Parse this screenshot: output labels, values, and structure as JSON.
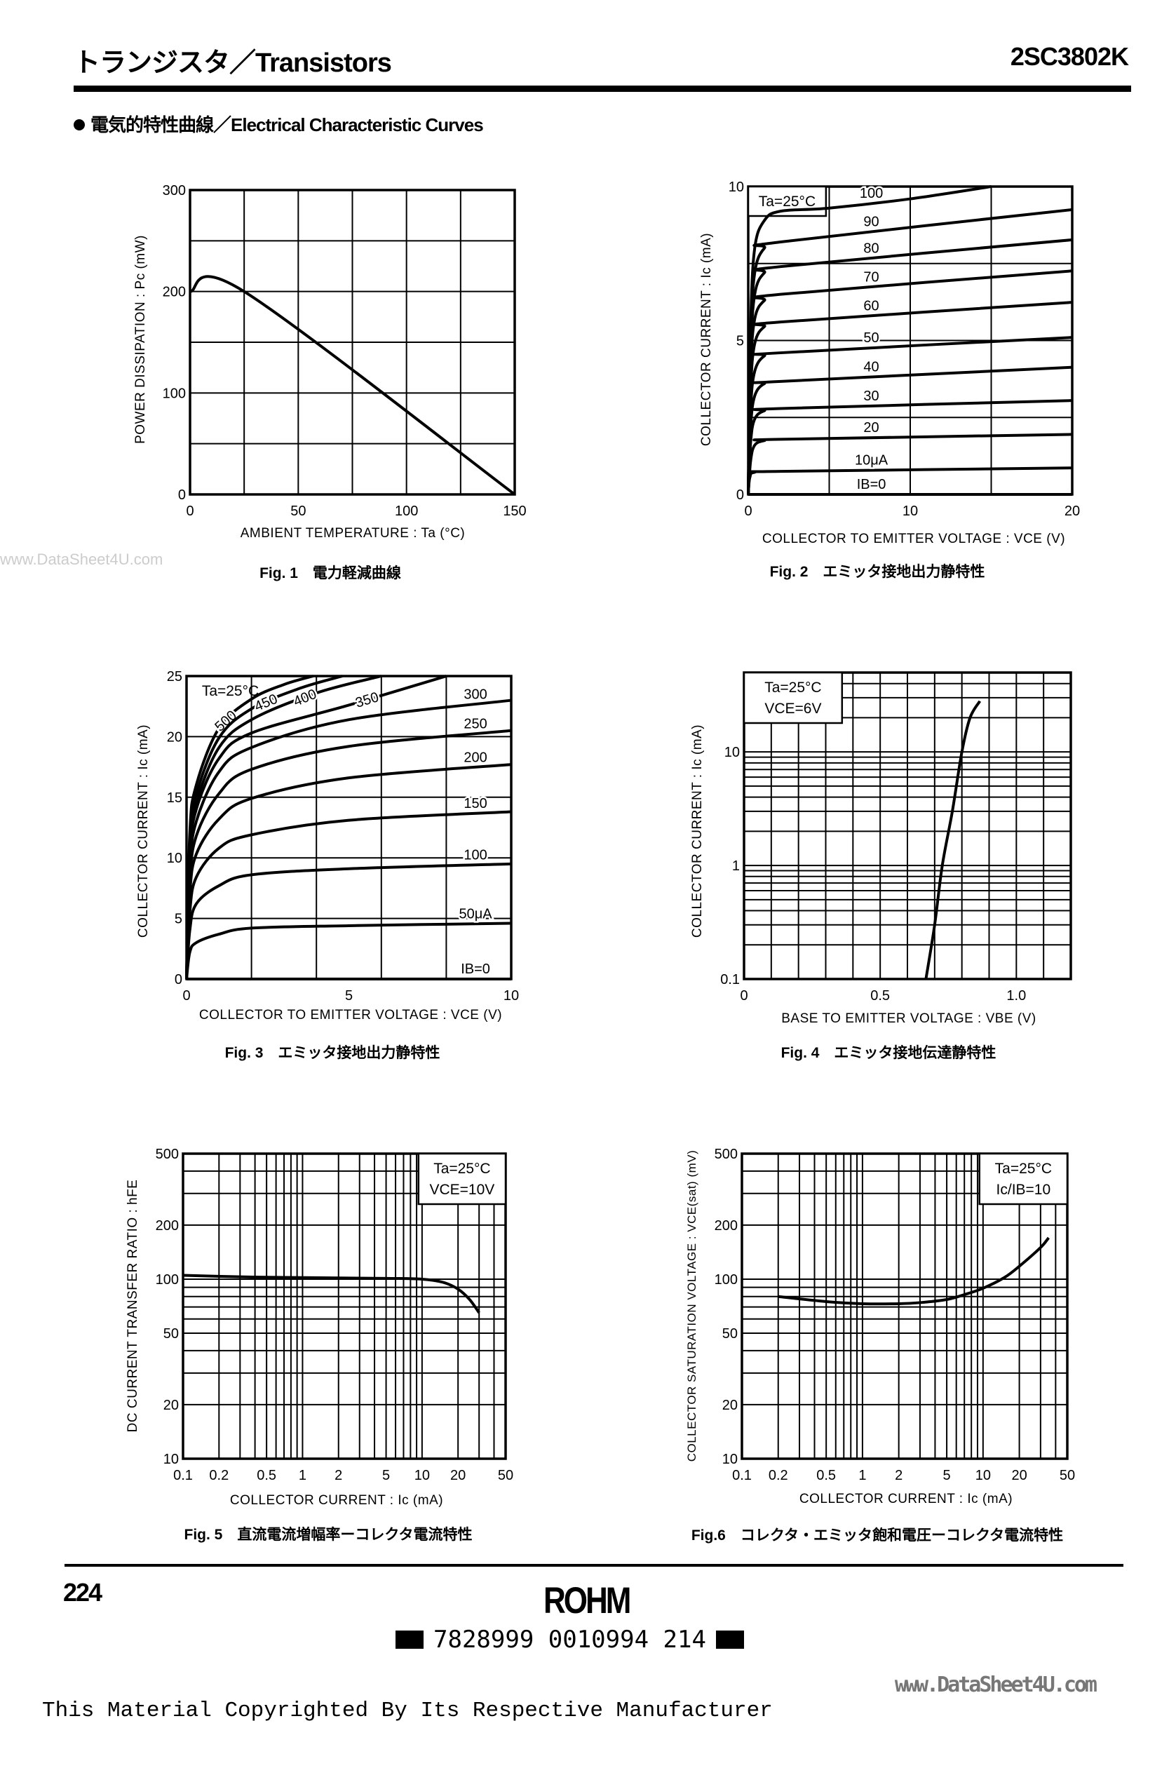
{
  "header": {
    "title": "トランジスタ／Transistors",
    "part_number": "2SC3802K"
  },
  "section": {
    "title": "電気的特性曲線／Electrical Characteristic Curves"
  },
  "watermark": {
    "left": "www.DataSheet4U.com",
    "right": "www.DataSheet4U.com"
  },
  "footer": {
    "page_number": "224",
    "logo": "ROHM",
    "barcode": "7828999 0010994 214",
    "copyright": "This Material Copyrighted By Its Respective Manufacturer"
  },
  "chart_data": [
    {
      "type": "line",
      "caption": "Fig. 1　電力軽減曲線",
      "xlabel": "AMBIENT TEMPERATURE : Ta (°C)",
      "ylabel": "POWER DISSIPATION : Pc (mW)",
      "xscale": "linear",
      "yscale": "linear",
      "xlim": [
        0,
        150
      ],
      "ylim": [
        0,
        300
      ],
      "xgrid_step": 25,
      "ygrid_step": 50,
      "xticks": [
        0,
        50,
        100,
        150
      ],
      "yticks": [
        0,
        100,
        200,
        300
      ],
      "legend": [],
      "grid": true,
      "series": [
        {
          "points": [
            [
              0,
              200
            ],
            [
              25,
              200
            ],
            [
              150,
              0
            ]
          ]
        }
      ]
    },
    {
      "type": "line",
      "caption": "Fig. 2　エミッタ接地出力静特性",
      "xlabel": "COLLECTOR TO EMITTER VOLTAGE : VCE (V)",
      "ylabel": "COLLECTOR CURRENT : Ic (mA)",
      "xscale": "linear",
      "yscale": "linear",
      "xlim": [
        0,
        20
      ],
      "ylim": [
        0,
        10
      ],
      "xgrid_step": 5,
      "ygrid_step": 2.5,
      "xticks": [
        0,
        10,
        20
      ],
      "yticks": [
        0,
        5,
        10
      ],
      "legend": [
        "Ta=25°C"
      ],
      "legend_box": "top-left",
      "grid": true,
      "series": [
        {
          "name": "100",
          "points": [
            [
              0,
              0
            ],
            [
              0.15,
              5.5
            ],
            [
              0.4,
              8.0
            ],
            [
              1,
              8.9
            ],
            [
              2,
              9.2
            ],
            [
              5,
              9.3
            ],
            [
              10,
              9.6
            ],
            [
              15,
              10
            ]
          ]
        },
        {
          "name": "90",
          "points": [
            [
              0,
              0
            ],
            [
              0.15,
              5
            ],
            [
              0.4,
              7.2
            ],
            [
              1,
              8.0
            ],
            [
              2,
              8.2
            ],
            [
              20,
              9.25
            ]
          ]
        },
        {
          "name": "80",
          "points": [
            [
              0,
              0
            ],
            [
              0.15,
              4.5
            ],
            [
              0.4,
              6.5
            ],
            [
              1,
              7.2
            ],
            [
              2,
              7.4
            ],
            [
              20,
              8.27
            ]
          ]
        },
        {
          "name": "70",
          "points": [
            [
              0,
              0
            ],
            [
              0.15,
              4
            ],
            [
              0.4,
              5.7
            ],
            [
              1,
              6.3
            ],
            [
              2,
              6.5
            ],
            [
              20,
              7.26
            ]
          ]
        },
        {
          "name": "60",
          "points": [
            [
              0,
              0
            ],
            [
              0.15,
              3.4
            ],
            [
              0.4,
              4.9
            ],
            [
              1,
              5.45
            ],
            [
              2,
              5.6
            ],
            [
              20,
              6.24
            ]
          ]
        },
        {
          "name": "50",
          "points": [
            [
              0,
              0
            ],
            [
              0.15,
              2.8
            ],
            [
              0.4,
              4.0
            ],
            [
              1,
              4.5
            ],
            [
              2,
              4.6
            ],
            [
              20,
              5.1
            ]
          ]
        },
        {
          "name": "40",
          "points": [
            [
              0,
              0
            ],
            [
              0.15,
              2.2
            ],
            [
              0.4,
              3.2
            ],
            [
              1,
              3.6
            ],
            [
              2,
              3.67
            ],
            [
              20,
              4.13
            ]
          ]
        },
        {
          "name": "30",
          "points": [
            [
              0,
              0
            ],
            [
              0.15,
              1.7
            ],
            [
              0.4,
              2.45
            ],
            [
              1,
              2.72
            ],
            [
              2,
              2.79
            ],
            [
              20,
              3.05
            ]
          ]
        },
        {
          "name": "20",
          "points": [
            [
              0,
              0
            ],
            [
              0.15,
              1.1
            ],
            [
              0.4,
              1.6
            ],
            [
              1,
              1.75
            ],
            [
              2,
              1.79
            ],
            [
              20,
              1.95
            ]
          ]
        },
        {
          "name": "10μA",
          "points": [
            [
              0,
              0
            ],
            [
              0.1,
              0.55
            ],
            [
              0.4,
              0.72
            ],
            [
              2,
              0.75
            ],
            [
              20,
              0.86
            ]
          ]
        },
        {
          "name": "IB=0",
          "points": [
            [
              0,
              0
            ],
            [
              20,
              0
            ]
          ]
        }
      ]
    },
    {
      "type": "line",
      "caption": "Fig. 3　エミッタ接地出力静特性",
      "xlabel": "COLLECTOR TO EMITTER VOLTAGE : VCE (V)",
      "ylabel": "COLLECTOR CURRENT : Ic (mA)",
      "xscale": "linear",
      "yscale": "linear",
      "xlim": [
        0,
        10
      ],
      "ylim": [
        0,
        25
      ],
      "xgrid_step": 2,
      "ygrid_step": 5,
      "xticks": [
        0,
        5,
        10
      ],
      "yticks": [
        0,
        5,
        10,
        15,
        20,
        25
      ],
      "legend": [
        "Ta=25°C"
      ],
      "legend_box": "none",
      "grid": true,
      "series": [
        {
          "name": "500",
          "points": [
            [
              0,
              0
            ],
            [
              0.1,
              12
            ],
            [
              0.3,
              16
            ],
            [
              1,
              20.7
            ],
            [
              2,
              23.1
            ],
            [
              3,
              24.3
            ],
            [
              3.9,
              25
            ]
          ]
        },
        {
          "name": "450",
          "points": [
            [
              0,
              0
            ],
            [
              0.1,
              11
            ],
            [
              0.3,
              15.2
            ],
            [
              1,
              19.9
            ],
            [
              2,
              22.3
            ],
            [
              3.5,
              24
            ],
            [
              4.8,
              25
            ]
          ]
        },
        {
          "name": "400",
          "points": [
            [
              0,
              0
            ],
            [
              0.1,
              10.5
            ],
            [
              0.3,
              14.5
            ],
            [
              1,
              19.1
            ],
            [
              2,
              21.4
            ],
            [
              4,
              23.6
            ],
            [
              6,
              25
            ]
          ]
        },
        {
          "name": "350",
          "points": [
            [
              0,
              0
            ],
            [
              0.1,
              10
            ],
            [
              0.3,
              14
            ],
            [
              1,
              18.2
            ],
            [
              2,
              20.3
            ],
            [
              5,
              22.6
            ],
            [
              8,
              25
            ]
          ]
        },
        {
          "name": "300",
          "points": [
            [
              0,
              0
            ],
            [
              0.1,
              9
            ],
            [
              0.3,
              13
            ],
            [
              1,
              17.1
            ],
            [
              2,
              19.1
            ],
            [
              5,
              21.4
            ],
            [
              10,
              23.0
            ]
          ]
        },
        {
          "name": "250",
          "points": [
            [
              0,
              0
            ],
            [
              0.1,
              8
            ],
            [
              0.3,
              11.8
            ],
            [
              1,
              15.3
            ],
            [
              2,
              17.3
            ],
            [
              5,
              19.2
            ],
            [
              10,
              20.5
            ]
          ]
        },
        {
          "name": "200",
          "points": [
            [
              0,
              0
            ],
            [
              0.1,
              7
            ],
            [
              0.3,
              10.3
            ],
            [
              1,
              13.2
            ],
            [
              2,
              14.9
            ],
            [
              5,
              16.6
            ],
            [
              10,
              17.7
            ]
          ]
        },
        {
          "name": "150",
          "points": [
            [
              0,
              0
            ],
            [
              0.1,
              5.5
            ],
            [
              0.3,
              8.4
            ],
            [
              1,
              10.8
            ],
            [
              2,
              11.9
            ],
            [
              5,
              13.1
            ],
            [
              10,
              13.8
            ]
          ]
        },
        {
          "name": "100",
          "points": [
            [
              0,
              0
            ],
            [
              0.1,
              4
            ],
            [
              0.3,
              6.2
            ],
            [
              1,
              7.7
            ],
            [
              2,
              8.6
            ],
            [
              5,
              9.1
            ],
            [
              10,
              9.5
            ]
          ]
        },
        {
          "name": "50μA",
          "points": [
            [
              0,
              0
            ],
            [
              0.1,
              2.2
            ],
            [
              0.3,
              3.0
            ],
            [
              1,
              3.7
            ],
            [
              2,
              4.2
            ],
            [
              5,
              4.4
            ],
            [
              10,
              4.6
            ]
          ]
        },
        {
          "name": "IB=0",
          "points": [
            [
              0,
              0
            ],
            [
              10,
              0
            ]
          ]
        }
      ]
    },
    {
      "type": "line",
      "caption": "Fig. 4　エミッタ接地伝達静特性",
      "xlabel": "BASE TO EMITTER VOLTAGE : VBE (V)",
      "ylabel": "COLLECTOR CURRENT : Ic (mA)",
      "xscale": "linear",
      "yscale": "log",
      "xlim": [
        0,
        1.2
      ],
      "ylim": [
        0.1,
        50
      ],
      "xgrid_step": 0.1,
      "xticks": [
        0,
        0.5,
        1.0
      ],
      "xtick_labels": [
        "0",
        "0.5",
        "1.0"
      ],
      "yticks": [
        0.1,
        1,
        10
      ],
      "legend": [
        "Ta=25°C",
        "VCE=6V"
      ],
      "legend_box": "top-left",
      "grid": true,
      "series": [
        {
          "points": [
            [
              0.668,
              0.1
            ],
            [
              0.7,
              0.3
            ],
            [
              0.728,
              1
            ],
            [
              0.765,
              3
            ],
            [
              0.8,
              10
            ],
            [
              0.83,
              20
            ],
            [
              0.866,
              28
            ]
          ]
        }
      ]
    },
    {
      "type": "line",
      "caption": "Fig. 5　直流電流増幅率ーコレクタ電流特性",
      "xlabel": "COLLECTOR CURRENT : Ic (mA)",
      "ylabel": "DC CURRENT TRANSFER RATIO : hFE",
      "xscale": "log",
      "yscale": "log",
      "xlim": [
        0.1,
        50
      ],
      "ylim": [
        10,
        500
      ],
      "xticks": [
        0.1,
        0.2,
        0.5,
        1,
        2,
        5,
        10,
        20,
        50
      ],
      "yticks": [
        10,
        20,
        50,
        100,
        200,
        500
      ],
      "legend": [
        "Ta=25°C",
        "VCE=10V"
      ],
      "legend_box": "top-right",
      "grid": true,
      "series": [
        {
          "points": [
            [
              0.1,
              105
            ],
            [
              0.3,
              103
            ],
            [
              1,
              102
            ],
            [
              5,
              101
            ],
            [
              10,
              100
            ],
            [
              15,
              96
            ],
            [
              20,
              88
            ],
            [
              25,
              77
            ],
            [
              30,
              65
            ]
          ]
        }
      ]
    },
    {
      "type": "line",
      "caption": "Fig.6　コレクタ・エミッタ飽和電圧ーコレクタ電流特性",
      "xlabel": "COLLECTOR CURRENT : Ic (mA)",
      "ylabel": "COLLECTOR SATURATION VOLTAGE : VCE(sat) (mV)",
      "xscale": "log",
      "yscale": "log",
      "xlim": [
        0.1,
        50
      ],
      "ylim": [
        10,
        500
      ],
      "xticks": [
        0.1,
        0.2,
        0.5,
        1,
        2,
        5,
        10,
        20,
        50
      ],
      "yticks": [
        10,
        20,
        50,
        100,
        200,
        500
      ],
      "legend": [
        "Ta=25°C",
        "Ic/IB=10"
      ],
      "legend_box": "top-right",
      "grid": true,
      "series": [
        {
          "points": [
            [
              0.2,
              80
            ],
            [
              0.5,
              75
            ],
            [
              1,
              73
            ],
            [
              2,
              73
            ],
            [
              3,
              74
            ],
            [
              5,
              77
            ],
            [
              7,
              82
            ],
            [
              10,
              89
            ],
            [
              15,
              102
            ],
            [
              20,
              118
            ],
            [
              30,
              150
            ],
            [
              35,
              170
            ]
          ]
        }
      ]
    }
  ]
}
